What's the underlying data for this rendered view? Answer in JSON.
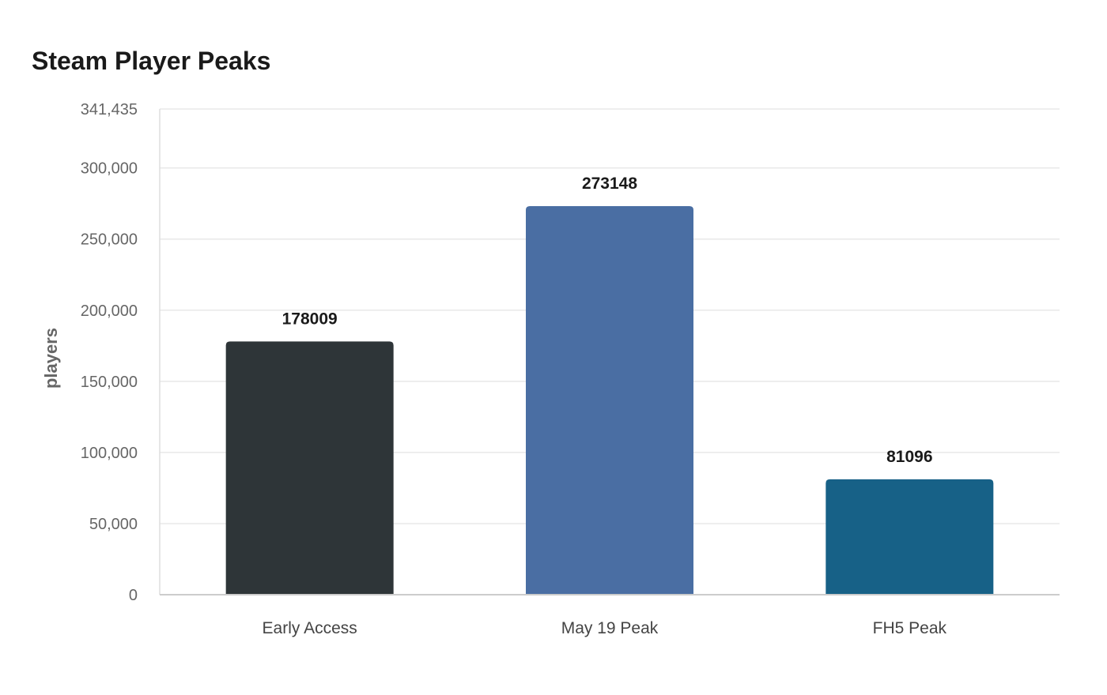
{
  "chart_data": {
    "type": "bar",
    "title": "Steam Player Peaks",
    "xlabel": "",
    "ylabel": "players",
    "categories": [
      "Early Access",
      "May 19 Peak",
      "FH5 Peak"
    ],
    "values": [
      178009,
      273148,
      81096
    ],
    "value_labels": [
      "178009",
      "273148",
      "81096"
    ],
    "colors": [
      "#2e3538",
      "#4a6ea3",
      "#176187"
    ],
    "ylim": [
      0,
      341435
    ],
    "yticks": [
      0,
      50000,
      100000,
      150000,
      200000,
      250000,
      300000,
      341435
    ],
    "ytick_labels": [
      "0",
      "50,000",
      "100,000",
      "150,000",
      "200,000",
      "250,000",
      "300,000",
      "341,435"
    ],
    "grid": true,
    "legend": "none"
  }
}
